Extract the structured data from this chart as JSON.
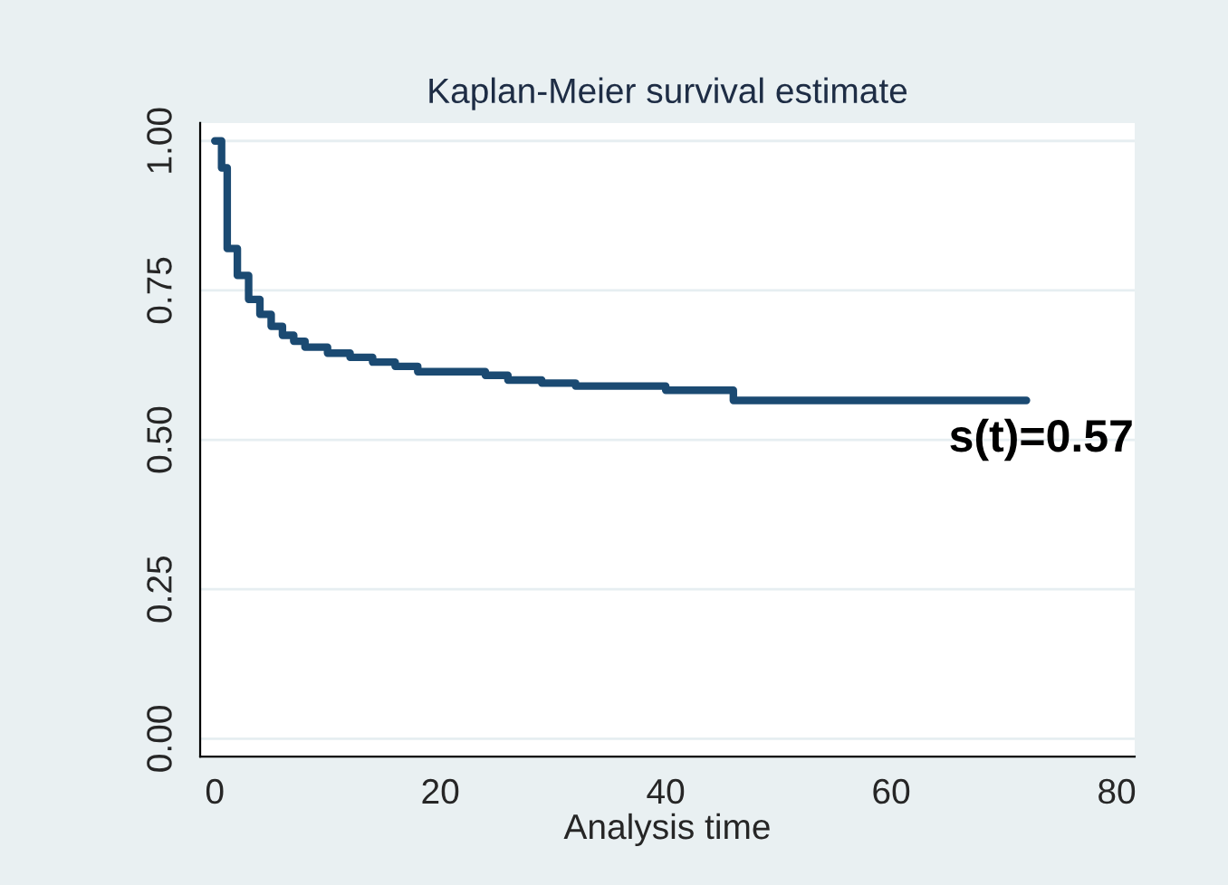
{
  "chart_data": {
    "type": "step",
    "title": "Kaplan-Meier survival estimate",
    "xlabel": "Analysis time",
    "x": [
      0,
      0.6,
      1.1,
      2,
      3,
      4,
      5,
      6,
      7,
      8,
      10,
      12,
      14,
      16,
      18,
      24,
      26,
      29,
      32,
      40,
      46,
      72
    ],
    "series": [
      {
        "color": "#1b4a72",
        "values": [
          1.0,
          0.955,
          0.82,
          0.775,
          0.735,
          0.71,
          0.69,
          0.675,
          0.665,
          0.655,
          0.645,
          0.638,
          0.63,
          0.623,
          0.614,
          0.608,
          0.6,
          0.595,
          0.59,
          0.583,
          0.566,
          0.566
        ]
      }
    ],
    "xlim": [
      -1.3,
      81.6
    ],
    "ylim": [
      -0.03,
      1.03
    ],
    "xticks": [
      0,
      20,
      40,
      60,
      80
    ],
    "yticks": [
      {
        "value": 0,
        "label": "0.00"
      },
      {
        "value": 0.25,
        "label": "0.25"
      },
      {
        "value": 0.5,
        "label": "0.50"
      },
      {
        "value": 0.75,
        "label": "0.75"
      },
      {
        "value": 1,
        "label": "1.00"
      }
    ],
    "grid": "y",
    "annotations": [
      "s(t)=0.57"
    ]
  }
}
